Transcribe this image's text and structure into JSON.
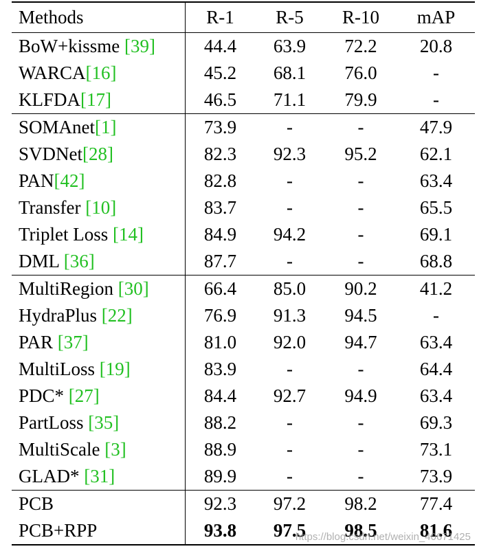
{
  "header": {
    "method": "Methods",
    "r1": "R-1",
    "r5": "R-5",
    "r10": "R-10",
    "map": "mAP"
  },
  "groups": [
    [
      {
        "name": "BoW+kissme ",
        "ref": "[39]",
        "r1": "44.4",
        "r5": "63.9",
        "r10": "72.2",
        "map": "20.8",
        "bold": false
      },
      {
        "name": "WARCA",
        "ref": "[16]",
        "r1": "45.2",
        "r5": "68.1",
        "r10": "76.0",
        "map": "-",
        "bold": false
      },
      {
        "name": "KLFDA",
        "ref": "[17]",
        "r1": "46.5",
        "r5": "71.1",
        "r10": "79.9",
        "map": "-",
        "bold": false
      }
    ],
    [
      {
        "name": "SOMAnet",
        "ref": "[1]",
        "r1": "73.9",
        "r5": "-",
        "r10": "-",
        "map": "47.9",
        "bold": false
      },
      {
        "name": "SVDNet",
        "ref": "[28]",
        "r1": "82.3",
        "r5": "92.3",
        "r10": "95.2",
        "map": "62.1",
        "bold": false
      },
      {
        "name": "PAN",
        "ref": "[42]",
        "r1": "82.8",
        "r5": "-",
        "r10": "-",
        "map": "63.4",
        "bold": false
      },
      {
        "name": "Transfer ",
        "ref": "[10]",
        "r1": "83.7",
        "r5": "-",
        "r10": "-",
        "map": "65.5",
        "bold": false
      },
      {
        "name": "Triplet Loss ",
        "ref": "[14]",
        "r1": "84.9",
        "r5": "94.2",
        "r10": "-",
        "map": "69.1",
        "bold": false
      },
      {
        "name": "DML ",
        "ref": "[36]",
        "r1": "87.7",
        "r5": "-",
        "r10": "-",
        "map": "68.8",
        "bold": false
      }
    ],
    [
      {
        "name": "MultiRegion ",
        "ref": "[30]",
        "r1": "66.4",
        "r5": "85.0",
        "r10": "90.2",
        "map": "41.2",
        "bold": false
      },
      {
        "name": "HydraPlus ",
        "ref": "[22]",
        "r1": "76.9",
        "r5": "91.3",
        "r10": "94.5",
        "map": "-",
        "bold": false
      },
      {
        "name": "PAR ",
        "ref": "[37]",
        "r1": "81.0",
        "r5": "92.0",
        "r10": "94.7",
        "map": "63.4",
        "bold": false
      },
      {
        "name": "MultiLoss ",
        "ref": "[19]",
        "r1": "83.9",
        "r5": "-",
        "r10": "-",
        "map": "64.4",
        "bold": false
      },
      {
        "name": "PDC* ",
        "ref": "[27]",
        "r1": "84.4",
        "r5": "92.7",
        "r10": "94.9",
        "map": "63.4",
        "bold": false
      },
      {
        "name": "PartLoss ",
        "ref": "[35]",
        "r1": "88.2",
        "r5": "-",
        "r10": "-",
        "map": "69.3",
        "bold": false
      },
      {
        "name": "MultiScale ",
        "ref": "[3]",
        "r1": "88.9",
        "r5": "-",
        "r10": "-",
        "map": "73.1",
        "bold": false
      },
      {
        "name": "GLAD* ",
        "ref": "[31]",
        "r1": "89.9",
        "r5": "-",
        "r10": "-",
        "map": "73.9",
        "bold": false
      }
    ],
    [
      {
        "name": "PCB",
        "ref": "",
        "r1": "92.3",
        "r5": "97.2",
        "r10": "98.2",
        "map": "77.4",
        "bold": false
      },
      {
        "name": "PCB+RPP",
        "ref": "",
        "r1": "93.8",
        "r5": "97.5",
        "r10": "98.5",
        "map": "81.6",
        "bold": true
      }
    ]
  ],
  "watermark": "https://blog.csdn.net/weixin_40671425",
  "colors": {
    "reference": "#22c022"
  }
}
